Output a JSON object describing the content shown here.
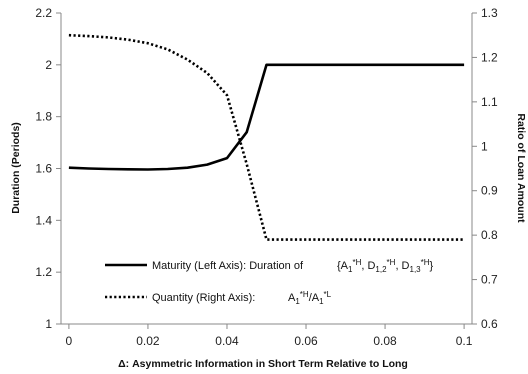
{
  "chart_data": {
    "type": "line",
    "title": "",
    "xlabel": "Δ: Asymmetric Information in Short Term Relative to Long",
    "ylabel_left": "Duration (Periods)",
    "ylabel_right": "Ratio of Loan Amount",
    "x_ticks": [
      "0",
      "0.02",
      "0.04",
      "0.06",
      "0.08",
      "0.1"
    ],
    "y_left_ticks": [
      "1",
      "1.2",
      "1.4",
      "1.6",
      "1.8",
      "2",
      "2.2"
    ],
    "y_right_ticks": [
      "0.6",
      "0.7",
      "0.8",
      "0.9",
      "1",
      "1.1",
      "1.2",
      "1.3"
    ],
    "xlim": [
      -0.002,
      0.102
    ],
    "ylim_left": [
      1.0,
      2.2
    ],
    "ylim_right": [
      0.6,
      1.3
    ],
    "grid": false,
    "legend_position": "lower-left inside",
    "series": [
      {
        "name": "Maturity (Left Axis): Duration of {A1*H, D1,2*H, D1,3*H}",
        "axis": "left",
        "style": "solid",
        "color": "#000000",
        "x": [
          0,
          0.005,
          0.01,
          0.015,
          0.02,
          0.025,
          0.03,
          0.035,
          0.04,
          0.045,
          0.05,
          0.055,
          0.06,
          0.065,
          0.07,
          0.075,
          0.08,
          0.085,
          0.09,
          0.095,
          0.1
        ],
        "y": [
          1.603,
          1.6,
          1.598,
          1.597,
          1.596,
          1.598,
          1.603,
          1.615,
          1.64,
          1.74,
          2.0,
          2.0,
          2.0,
          2.0,
          2.0,
          2.0,
          2.0,
          2.0,
          2.0,
          2.0,
          2.0
        ]
      },
      {
        "name": "Quantity (Right Axis): A1*H/A1*L",
        "axis": "right",
        "style": "dotted",
        "color": "#000000",
        "x": [
          0,
          0.005,
          0.01,
          0.015,
          0.02,
          0.025,
          0.03,
          0.035,
          0.04,
          0.045,
          0.05,
          0.055,
          0.06,
          0.065,
          0.07,
          0.075,
          0.08,
          0.085,
          0.09,
          0.095,
          0.1
        ],
        "y": [
          1.25,
          1.248,
          1.245,
          1.24,
          1.232,
          1.218,
          1.195,
          1.165,
          1.115,
          0.96,
          0.79,
          0.79,
          0.79,
          0.79,
          0.79,
          0.79,
          0.79,
          0.79,
          0.79,
          0.79,
          0.79
        ]
      }
    ],
    "legend": {
      "maturity_label": "Maturity (Left Axis): Duration of",
      "maturity_set": {
        "open": "{A",
        "s1": "1",
        "sup1": "*H",
        "sep1": ", D",
        "s2": "1,2",
        "sup2": "*H",
        "sep2": ", D",
        "s3": "1,3",
        "sup3": "*H",
        "close": "}"
      },
      "quantity_label": "Quantity (Right Axis):",
      "quantity_ratio": {
        "a": "A",
        "s1": "1",
        "sup1": "*H",
        "slash": "/A",
        "s2": "1",
        "sup2": "*L"
      }
    }
  }
}
